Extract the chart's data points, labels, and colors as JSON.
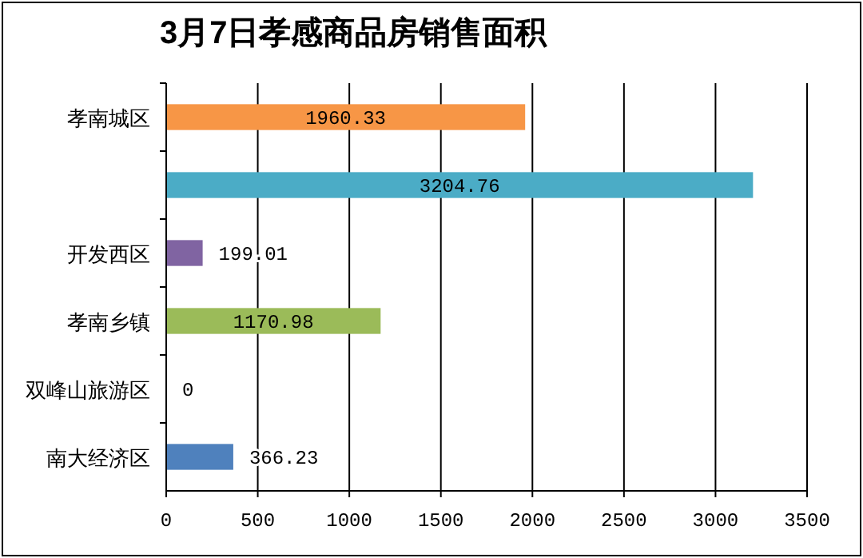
{
  "chart_data": {
    "type": "bar",
    "orientation": "horizontal",
    "title": "3月7日孝感商品房销售面积",
    "categories": [
      "孝南城区",
      null,
      "开发西区",
      "孝南乡镇",
      "双峰山旅游区",
      "南大经济区"
    ],
    "values": [
      1960.33,
      3204.76,
      199.01,
      1170.98,
      0,
      366.23
    ],
    "colors": [
      "#f79646",
      "#4bacc6",
      "#8064a2",
      "#9bbb59",
      "#4f81bd",
      "#4f81bd"
    ],
    "xlim": [
      0,
      3500
    ],
    "xticks": [
      0,
      500,
      1000,
      1500,
      2000,
      2500,
      3000,
      3500
    ],
    "grid": "x",
    "data_labels": true
  }
}
